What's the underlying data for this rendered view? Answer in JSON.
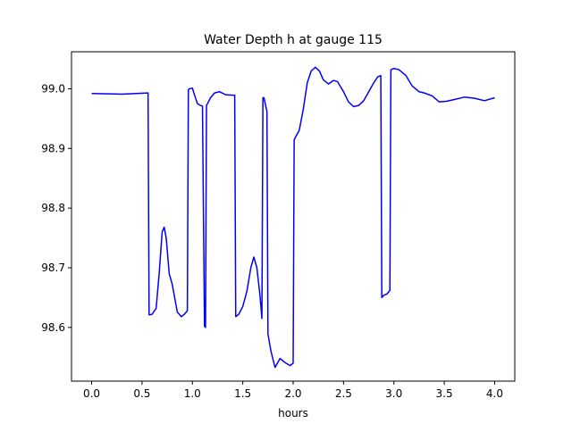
{
  "chart_data": {
    "type": "line",
    "title": "Water Depth h at gauge 115",
    "xlabel": "hours",
    "ylabel": "",
    "xlim": [
      -0.2,
      4.2
    ],
    "ylim": [
      98.51,
      99.062
    ],
    "grid": false,
    "legend": "none",
    "x_ticks": [
      0.0,
      0.5,
      1.0,
      1.5,
      2.0,
      2.5,
      3.0,
      3.5,
      4.0
    ],
    "x_tick_labels": [
      "0.0",
      "0.5",
      "1.0",
      "1.5",
      "2.0",
      "2.5",
      "3.0",
      "3.5",
      "4.0"
    ],
    "y_ticks": [
      98.6,
      98.7,
      98.8,
      98.9,
      99.0
    ],
    "y_tick_labels": [
      "98.6",
      "98.7",
      "98.8",
      "98.9",
      "99.0"
    ],
    "series": [
      {
        "color": "#0000ff",
        "x": [
          0.0,
          0.3,
          0.56,
          0.57,
          0.6,
          0.64,
          0.67,
          0.7,
          0.72,
          0.74,
          0.77,
          0.8,
          0.85,
          0.89,
          0.92,
          0.95,
          0.96,
          0.97,
          1.0,
          1.02,
          1.05,
          1.08,
          1.1,
          1.12,
          1.13,
          1.14,
          1.15,
          1.18,
          1.22,
          1.27,
          1.33,
          1.42,
          1.43,
          1.46,
          1.5,
          1.54,
          1.58,
          1.61,
          1.64,
          1.67,
          1.69,
          1.7,
          1.71,
          1.74,
          1.75,
          1.78,
          1.82,
          1.87,
          1.92,
          1.97,
          2.0,
          2.01,
          2.02,
          2.06,
          2.1,
          2.14,
          2.18,
          2.22,
          2.26,
          2.3,
          2.35,
          2.4,
          2.44,
          2.5,
          2.55,
          2.6,
          2.65,
          2.7,
          2.75,
          2.8,
          2.84,
          2.87,
          2.88,
          2.89,
          2.9,
          2.93,
          2.95,
          2.96,
          2.97,
          3.0,
          3.05,
          3.12,
          3.18,
          3.25,
          3.3,
          3.38,
          3.45,
          3.52,
          3.6,
          3.7,
          3.8,
          3.9,
          4.0
        ],
        "y": [
          98.992,
          98.991,
          98.993,
          98.621,
          98.622,
          98.632,
          98.69,
          98.76,
          98.768,
          98.75,
          98.69,
          98.672,
          98.626,
          98.618,
          98.622,
          98.628,
          98.998,
          99.0,
          99.001,
          98.99,
          98.975,
          98.972,
          98.971,
          98.602,
          98.6,
          98.972,
          98.975,
          98.985,
          98.993,
          98.995,
          98.99,
          98.989,
          98.618,
          98.622,
          98.635,
          98.66,
          98.7,
          98.718,
          98.7,
          98.655,
          98.615,
          98.985,
          98.985,
          98.962,
          98.589,
          98.56,
          98.533,
          98.548,
          98.541,
          98.536,
          98.54,
          98.914,
          98.918,
          98.93,
          98.965,
          99.01,
          99.03,
          99.036,
          99.03,
          99.015,
          99.008,
          99.014,
          99.012,
          98.995,
          98.978,
          98.97,
          98.972,
          98.98,
          98.995,
          99.01,
          99.02,
          99.022,
          98.65,
          98.652,
          98.654,
          98.656,
          98.66,
          98.662,
          99.032,
          99.034,
          99.032,
          99.022,
          99.005,
          98.995,
          98.993,
          98.988,
          98.978,
          98.979,
          98.982,
          98.986,
          98.984,
          98.98,
          98.985
        ]
      }
    ]
  }
}
